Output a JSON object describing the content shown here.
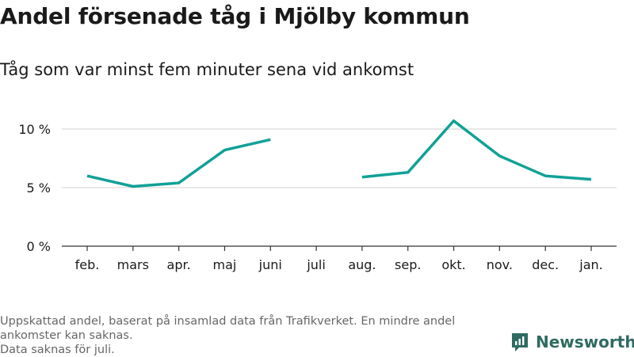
{
  "title": "Andel försenade tåg i Mjölby kommun",
  "subtitle": "Tåg som var minst fem minuter sena vid ankomst",
  "footnote": [
    "Uppskattad andel, baserat på insamlad data från Trafikverket. En mindre andel ankomster kan saknas.",
    "Data saknas för juli."
  ],
  "brand": {
    "name": "Newsworthy",
    "icon": "newsworthy-logo-icon",
    "color": "#2f6b62"
  },
  "chart_data": {
    "type": "line",
    "title": "Andel försenade tåg i Mjölby kommun",
    "subtitle": "Tåg som var minst fem minuter sena vid ankomst",
    "categories": [
      "feb.",
      "mars",
      "apr.",
      "maj",
      "juni",
      "juli",
      "aug.",
      "sep.",
      "okt.",
      "nov.",
      "dec.",
      "jan."
    ],
    "values": [
      6.0,
      5.1,
      5.4,
      8.2,
      9.1,
      null,
      5.9,
      6.3,
      10.7,
      7.7,
      6.0,
      5.7
    ],
    "yticks": [
      0,
      5,
      10
    ],
    "ytick_labels": [
      "0 %",
      "5 %",
      "10 %"
    ],
    "ylim": [
      0,
      11
    ],
    "grid": true,
    "line_color": "#10a197",
    "grid_color": "#d9d9d9",
    "axis_color": "#333333"
  }
}
